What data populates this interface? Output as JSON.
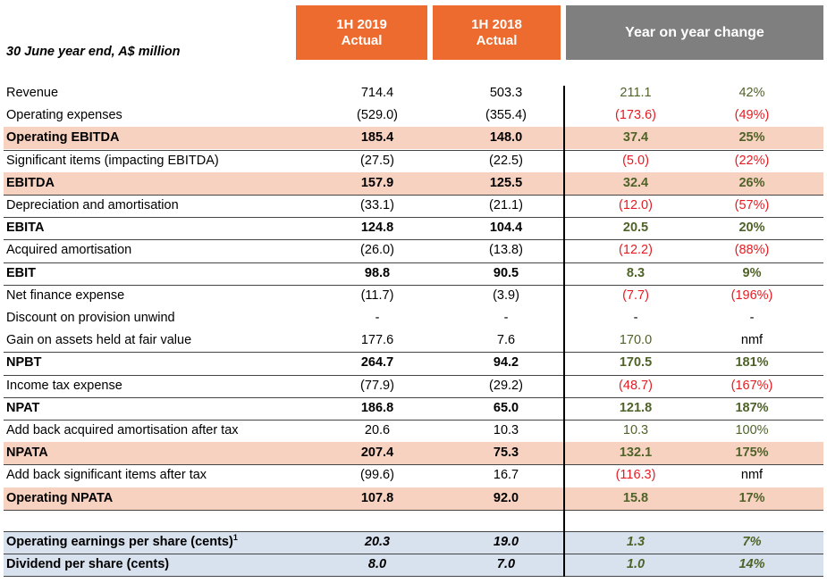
{
  "header": {
    "col1_line1": "1H 2019",
    "col1_line2": "Actual",
    "col2_line1": "1H 2018",
    "col2_line2": "Actual",
    "col3": "Year on year change",
    "caption": "30 June year end, A$ million"
  },
  "colors": {
    "header_orange": "#ee6b2f",
    "header_grey": "#7f7f7f",
    "highlight_pink": "#f8d2c0",
    "highlight_blue": "#d8e1ee",
    "positive_green": "#4f6228",
    "negative_red": "#e51c23"
  },
  "rows": [
    {
      "label": "Revenue",
      "v2019": "714.4",
      "v2018": "503.3",
      "chg": "211.1",
      "pct": "42%"
    },
    {
      "label": "Operating expenses",
      "v2019": "(529.0)",
      "v2018": "(355.4)",
      "chg": "(173.6)",
      "pct": "(49%)"
    },
    {
      "label": "Operating EBITDA",
      "v2019": "185.4",
      "v2018": "148.0",
      "chg": "37.4",
      "pct": "25%"
    },
    {
      "label": "Significant items (impacting  EBITDA)",
      "v2019": "(27.5)",
      "v2018": "(22.5)",
      "chg": "(5.0)",
      "pct": "(22%)"
    },
    {
      "label": "EBITDA",
      "v2019": "157.9",
      "v2018": "125.5",
      "chg": "32.4",
      "pct": "26%"
    },
    {
      "label": "Depreciation and amortisation",
      "v2019": "(33.1)",
      "v2018": "(21.1)",
      "chg": "(12.0)",
      "pct": "(57%)"
    },
    {
      "label": "EBITA",
      "v2019": "124.8",
      "v2018": "104.4",
      "chg": "20.5",
      "pct": "20%"
    },
    {
      "label": "Acquired amortisation",
      "v2019": "(26.0)",
      "v2018": "(13.8)",
      "chg": "(12.2)",
      "pct": "(88%)"
    },
    {
      "label": "EBIT",
      "v2019": "98.8",
      "v2018": "90.5",
      "chg": "8.3",
      "pct": "9%"
    },
    {
      "label": "Net finance expense",
      "v2019": "(11.7)",
      "v2018": "(3.9)",
      "chg": "(7.7)",
      "pct": "(196%)"
    },
    {
      "label": "Discount on provision unwind",
      "v2019": "-",
      "v2018": "-",
      "chg": "-",
      "pct": "-"
    },
    {
      "label": "Gain on assets held at fair value",
      "v2019": "177.6",
      "v2018": "7.6",
      "chg": "170.0",
      "pct": "nmf"
    },
    {
      "label": "NPBT",
      "v2019": "264.7",
      "v2018": "94.2",
      "chg": "170.5",
      "pct": "181%"
    },
    {
      "label": "Income tax expense",
      "v2019": "(77.9)",
      "v2018": "(29.2)",
      "chg": "(48.7)",
      "pct": "(167%)"
    },
    {
      "label": "NPAT",
      "v2019": "186.8",
      "v2018": "65.0",
      "chg": "121.8",
      "pct": "187%"
    },
    {
      "label": "Add back acquired amortisation after tax",
      "v2019": "20.6",
      "v2018": "10.3",
      "chg": "10.3",
      "pct": "100%"
    },
    {
      "label": "NPATA",
      "v2019": "207.4",
      "v2018": "75.3",
      "chg": "132.1",
      "pct": "175%"
    },
    {
      "label": "Add back significant items after tax",
      "v2019": "(99.6)",
      "v2018": "16.7",
      "chg": "(116.3)",
      "pct": "nmf"
    },
    {
      "label": "Operating NPATA",
      "v2019": "107.8",
      "v2018": "92.0",
      "chg": "15.8",
      "pct": "17%"
    }
  ],
  "per_share": [
    {
      "label": "Operating earnings per share (cents)",
      "footnote": "1",
      "v2019": "20.3",
      "v2018": "19.0",
      "chg": "1.3",
      "pct": "7%"
    },
    {
      "label": "Dividend per share (cents)",
      "v2019": "8.0",
      "v2018": "7.0",
      "chg": "1.0",
      "pct": "14%"
    }
  ]
}
